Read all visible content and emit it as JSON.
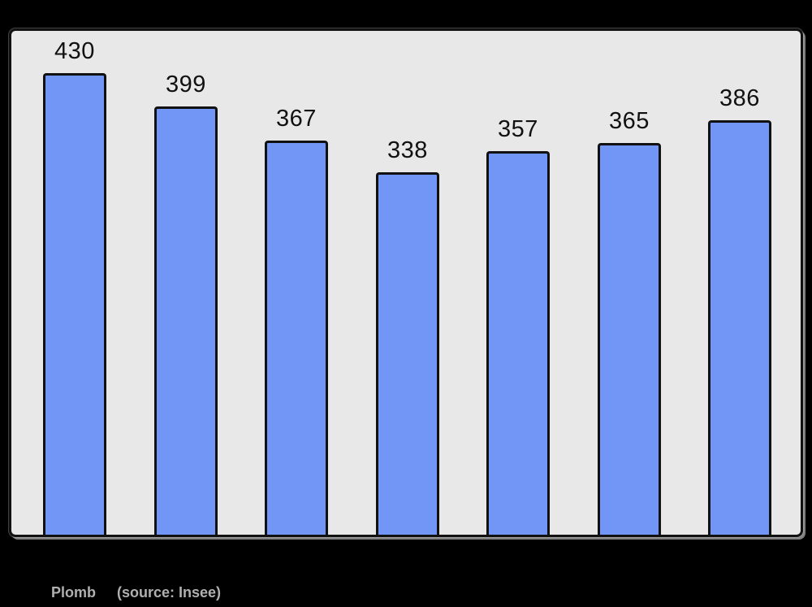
{
  "page": {
    "background": "#000000"
  },
  "chart_data": {
    "type": "bar",
    "title": "",
    "values": [
      430,
      399,
      367,
      338,
      357,
      365,
      386
    ],
    "bar_labels": [
      "430",
      "399",
      "367",
      "338",
      "357",
      "365",
      "386"
    ],
    "xlabel": "",
    "ylabel": "",
    "ylim": [
      0,
      470
    ],
    "grid": false,
    "legend": false,
    "x_tick_labels_visible": false,
    "bar_color": "#7296f5",
    "bar_border_color": "#111111",
    "plot_background": "#e8e8e8",
    "value_label_color": "#111111"
  },
  "caption": {
    "label": "Plomb",
    "source": "(source: Insee)",
    "color": "#b0b0b0"
  }
}
